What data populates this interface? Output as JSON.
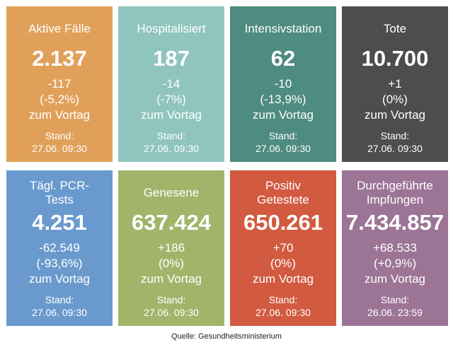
{
  "tiles": [
    {
      "label": "Aktive Fälle",
      "value": "2.137",
      "delta": "-117",
      "percent": "(-5,2%)",
      "comparison": "zum Vortag",
      "stand_label": "Stand:",
      "stand_date": "27.06. 09:30",
      "color": "#E1A05A"
    },
    {
      "label": "Hospitalisiert",
      "value": "187",
      "delta": "-14",
      "percent": "(-7%)",
      "comparison": "zum Vortag",
      "stand_label": "Stand:",
      "stand_date": "27.06. 09:30",
      "color": "#8FC5BE"
    },
    {
      "label": "Intensivstation",
      "value": "62",
      "delta": "-10",
      "percent": "(-13,9%)",
      "comparison": "zum Vortag",
      "stand_label": "Stand:",
      "stand_date": "27.06. 09:30",
      "color": "#4E8B80"
    },
    {
      "label": "Tote",
      "value": "10.700",
      "delta": "+1",
      "percent": "(0%)",
      "comparison": "zum Vortag",
      "stand_label": "Stand:",
      "stand_date": "27.06. 09:30",
      "color": "#4D4D4D"
    },
    {
      "label": "Tägl. PCR-\nTests",
      "value": "4.251",
      "delta": "-62.549",
      "percent": "(-93,6%)",
      "comparison": "zum Vortag",
      "stand_label": "Stand:",
      "stand_date": "27.06. 09:30",
      "color": "#6A9ACD"
    },
    {
      "label": "Genesene",
      "value": "637.424",
      "delta": "+186",
      "percent": "(0%)",
      "comparison": "zum Vortag",
      "stand_label": "Stand:",
      "stand_date": "27.06. 09:30",
      "color": "#A2B46A"
    },
    {
      "label": "Positiv\nGetestete",
      "value": "650.261",
      "delta": "+70",
      "percent": "(0%)",
      "comparison": "zum Vortag",
      "stand_label": "Stand:",
      "stand_date": "27.06. 09:30",
      "color": "#D15A40"
    },
    {
      "label": "Durchgeführte\nImpfungen",
      "value": "7.434.857",
      "delta": "+68.533",
      "percent": "(+0,9%)",
      "comparison": "zum Vortag",
      "stand_label": "Stand:",
      "stand_date": "26.06. 23:59",
      "color": "#9C7495"
    }
  ],
  "source": "Quelle: Gesundheitsministerium"
}
